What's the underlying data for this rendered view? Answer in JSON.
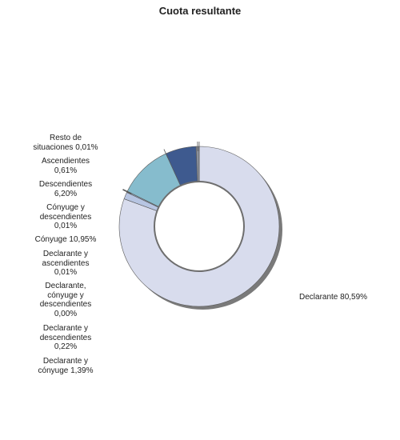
{
  "chart_data": {
    "type": "pie",
    "title": "Cuota resultante",
    "slices": [
      {
        "name": "Declarante",
        "value": 80.59,
        "label": "Declarante 80,59%",
        "color": "#d8dced"
      },
      {
        "name": "Declarante y cónyuge",
        "value": 1.39,
        "label": "Declarante y\ncónyuge 1,39%",
        "color": "#b7c5e2"
      },
      {
        "name": "Declarante y descendientes",
        "value": 0.22,
        "label": "Declarante y\ndescendientes\n0,22%",
        "color": "#9fb7d6"
      },
      {
        "name": "Declarante, cónyuge y descendientes",
        "value": 0.0,
        "label": "Declarante,\ncónyuge y\ndescendientes\n0,00%",
        "color": "#8fb0d0"
      },
      {
        "name": "Declarante y ascendientes",
        "value": 0.01,
        "label": "Declarante y\nascendientes\n0,01%",
        "color": "#7fa9cc"
      },
      {
        "name": "Cónyuge",
        "value": 10.95,
        "label": "Cónyuge 10,95%",
        "color": "#86bccd"
      },
      {
        "name": "Cónyuge y descendientes",
        "value": 0.01,
        "label": "Cónyuge y\ndescendientes\n0,01%",
        "color": "#6f9fc3"
      },
      {
        "name": "Descendientes",
        "value": 6.2,
        "label": "Descendientes\n6,20%",
        "color": "#3e5a8f"
      },
      {
        "name": "Ascendientes",
        "value": 0.61,
        "label": "Ascendientes\n0,61%",
        "color": "#8a8f9a"
      },
      {
        "name": "Resto de situaciones",
        "value": 0.01,
        "label": "Resto de\nsituaciones 0,01%",
        "color": "#c4c8d0"
      }
    ]
  }
}
